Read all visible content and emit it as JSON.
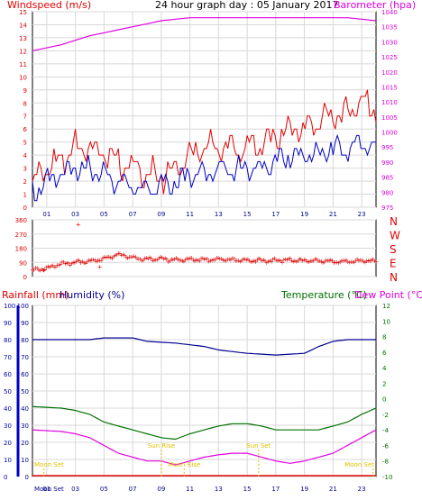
{
  "chart_data": [
    {
      "type": "line",
      "title": "24 hour graph day : 05 January 2017",
      "left_axis_label": "Windspeed (m/s)",
      "right_axis_label": "Barometer (hpa)",
      "left_ylim": [
        0,
        15
      ],
      "right_ylim": [
        975,
        1040
      ],
      "x_ticks": [
        "01",
        "03",
        "05",
        "07",
        "09",
        "11",
        "13",
        "15",
        "17",
        "19",
        "21",
        "23"
      ],
      "x_range_hours": [
        0,
        24
      ],
      "colors": {
        "gust": "#e00000",
        "average": "#0000c0",
        "barometer": "#e000e0"
      },
      "barometer": [
        [
          0,
          1027
        ],
        [
          1,
          1028
        ],
        [
          2,
          1029
        ],
        [
          3,
          1030.5
        ],
        [
          4,
          1032
        ],
        [
          5,
          1033
        ],
        [
          6,
          1034
        ],
        [
          7,
          1035
        ],
        [
          8,
          1036
        ],
        [
          9,
          1037
        ],
        [
          10,
          1037.5
        ],
        [
          11,
          1038
        ],
        [
          12,
          1038
        ],
        [
          14,
          1038
        ],
        [
          16,
          1038
        ],
        [
          18,
          1038
        ],
        [
          20,
          1038
        ],
        [
          22,
          1038
        ],
        [
          23,
          1037.5
        ],
        [
          24,
          1037
        ]
      ],
      "gust_trend": [
        [
          0,
          2
        ],
        [
          1,
          3
        ],
        [
          2,
          3.5
        ],
        [
          3,
          4.5
        ],
        [
          4,
          4.5
        ],
        [
          5,
          4
        ],
        [
          6,
          3.5
        ],
        [
          7,
          3
        ],
        [
          8,
          2.5
        ],
        [
          9,
          2.5
        ],
        [
          10,
          3
        ],
        [
          11,
          4
        ],
        [
          12,
          4.5
        ],
        [
          13,
          4.5
        ],
        [
          14,
          4.5
        ],
        [
          15,
          4.5
        ],
        [
          16,
          5
        ],
        [
          17,
          5.5
        ],
        [
          18,
          6
        ],
        [
          19,
          6
        ],
        [
          20,
          6.5
        ],
        [
          21,
          7
        ],
        [
          22,
          7
        ],
        [
          23,
          8
        ],
        [
          24,
          7.5
        ]
      ],
      "average_trend": [
        [
          0,
          1
        ],
        [
          1,
          2
        ],
        [
          2,
          2.5
        ],
        [
          3,
          3
        ],
        [
          4,
          3
        ],
        [
          5,
          2.5
        ],
        [
          6,
          2
        ],
        [
          7,
          1.5
        ],
        [
          8,
          1.5
        ],
        [
          9,
          1.5
        ],
        [
          10,
          2
        ],
        [
          11,
          2.5
        ],
        [
          12,
          2.5
        ],
        [
          13,
          3
        ],
        [
          14,
          3
        ],
        [
          15,
          3
        ],
        [
          16,
          3
        ],
        [
          17,
          3.5
        ],
        [
          18,
          4
        ],
        [
          19,
          4
        ],
        [
          20,
          4
        ],
        [
          21,
          4.5
        ],
        [
          22,
          4.5
        ],
        [
          23,
          5
        ],
        [
          24,
          4.5
        ]
      ]
    },
    {
      "type": "scatter",
      "y_ticks": [
        "360",
        "270",
        "180",
        "90",
        "0"
      ],
      "ylim": [
        0,
        360
      ],
      "direction_labels": [
        "N",
        "W",
        "S",
        "E",
        "N"
      ],
      "color": "#e00000",
      "trend": [
        [
          0,
          40
        ],
        [
          1,
          50
        ],
        [
          2,
          80
        ],
        [
          3,
          90
        ],
        [
          4,
          95
        ],
        [
          5,
          110
        ],
        [
          6,
          140
        ],
        [
          7,
          120
        ],
        [
          8,
          110
        ],
        [
          9,
          110
        ],
        [
          10,
          105
        ],
        [
          11,
          110
        ],
        [
          12,
          105
        ],
        [
          13,
          110
        ],
        [
          14,
          105
        ],
        [
          15,
          100
        ],
        [
          16,
          100
        ],
        [
          17,
          100
        ],
        [
          18,
          105
        ],
        [
          19,
          100
        ],
        [
          20,
          100
        ],
        [
          21,
          95
        ],
        [
          22,
          95
        ],
        [
          23,
          100
        ],
        [
          24,
          95
        ]
      ],
      "outliers": [
        [
          3.2,
          330
        ],
        [
          0.8,
          40
        ],
        [
          4.7,
          60
        ]
      ]
    },
    {
      "type": "line",
      "labels": {
        "rainfall": "Rainfall (mm)",
        "humidity": "Humidity (%)",
        "temperature": "Temperature (°C)",
        "dewpoint": "Dew Point (°C)"
      },
      "left_ylim": [
        0,
        100
      ],
      "right_ylim": [
        -10,
        12
      ],
      "left_ticks": [
        "100",
        "90",
        "80",
        "70",
        "60",
        "50",
        "40",
        "30",
        "20",
        "10",
        "0"
      ],
      "right_ticks": [
        "12",
        "10",
        "8",
        "6",
        "4",
        "2",
        "0",
        "-2",
        "-4",
        "-6",
        "-8",
        "-10"
      ],
      "x_ticks": [
        "01",
        "03",
        "05",
        "07",
        "09",
        "11",
        "13",
        "15",
        "17",
        "19",
        "21",
        "23"
      ],
      "colors": {
        "rain": "#e00000",
        "humidity": "#000090",
        "temperature": "#007000",
        "dewpoint": "#e000e0",
        "events": "#e0c000"
      },
      "humidity": [
        [
          0,
          80
        ],
        [
          4,
          80
        ],
        [
          5,
          81
        ],
        [
          7,
          81
        ],
        [
          8,
          79
        ],
        [
          10,
          78
        ],
        [
          11,
          77
        ],
        [
          12,
          76
        ],
        [
          13,
          74
        ],
        [
          15,
          72
        ],
        [
          17,
          71
        ],
        [
          19,
          72
        ],
        [
          20,
          76
        ],
        [
          21,
          79
        ],
        [
          22,
          80
        ],
        [
          24,
          80
        ]
      ],
      "temperature": [
        [
          0,
          -1
        ],
        [
          2,
          -1.2
        ],
        [
          3,
          -1.5
        ],
        [
          4,
          -2
        ],
        [
          5,
          -3
        ],
        [
          6,
          -3.5
        ],
        [
          7,
          -4
        ],
        [
          8,
          -4.5
        ],
        [
          9,
          -5
        ],
        [
          10,
          -5.2
        ],
        [
          11,
          -4.5
        ],
        [
          12,
          -4
        ],
        [
          13,
          -3.5
        ],
        [
          14,
          -3.2
        ],
        [
          15,
          -3.2
        ],
        [
          16,
          -3.5
        ],
        [
          17,
          -4
        ],
        [
          18,
          -4
        ],
        [
          19,
          -4
        ],
        [
          20,
          -4
        ],
        [
          21,
          -3.5
        ],
        [
          22,
          -3
        ],
        [
          23,
          -2
        ],
        [
          24,
          -1.2
        ]
      ],
      "dewpoint": [
        [
          0,
          -4
        ],
        [
          2,
          -4.2
        ],
        [
          3,
          -4.5
        ],
        [
          4,
          -5
        ],
        [
          5,
          -6
        ],
        [
          6,
          -7
        ],
        [
          7,
          -7.5
        ],
        [
          8,
          -8
        ],
        [
          9,
          -8
        ],
        [
          10,
          -8.5
        ],
        [
          11,
          -8
        ],
        [
          12,
          -7.5
        ],
        [
          13,
          -7.2
        ],
        [
          14,
          -7
        ],
        [
          15,
          -7
        ],
        [
          16,
          -7.5
        ],
        [
          17,
          -8
        ],
        [
          18,
          -8.3
        ],
        [
          19,
          -8
        ],
        [
          20,
          -7.5
        ],
        [
          21,
          -7
        ],
        [
          22,
          -6
        ],
        [
          23,
          -5
        ],
        [
          24,
          -4
        ]
      ],
      "events": [
        {
          "label": "Moon Set",
          "hour": 0.8
        },
        {
          "label": "Sun Rise",
          "hour": 9.0
        },
        {
          "label": "Moon Rise",
          "hour": 10.6
        },
        {
          "label": "Sun Set",
          "hour": 15.8
        },
        {
          "label": "Moon Set",
          "hour": 23.8
        }
      ],
      "bottom_label": "Moon Set"
    }
  ]
}
